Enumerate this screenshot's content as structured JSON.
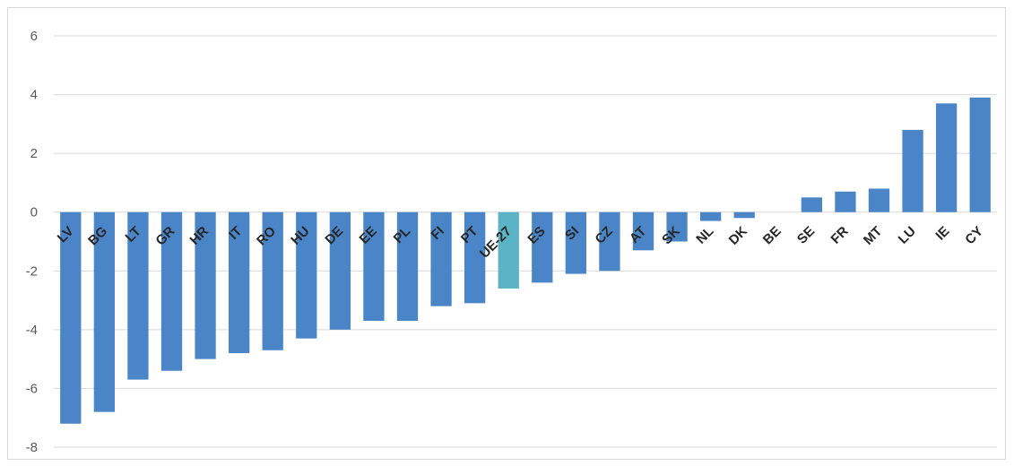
{
  "chart_data": {
    "type": "bar",
    "title": "",
    "xlabel": "",
    "ylabel": "",
    "ylim": [
      -8,
      6
    ],
    "yticks": [
      6,
      4,
      2,
      0,
      -2,
      -4,
      -6,
      -8
    ],
    "grid": true,
    "legend": "none",
    "colors": {
      "default": "#4a85c8",
      "highlight": "#5ab4c6",
      "grid": "#d9d9d9"
    },
    "highlight_category": "UE-27",
    "categories": [
      "LV",
      "BG",
      "LT",
      "GR",
      "HR",
      "IT",
      "RO",
      "HU",
      "DE",
      "EE",
      "PL",
      "FI",
      "PT",
      "UE-27",
      "ES",
      "SI",
      "CZ",
      "AT",
      "SK",
      "NL",
      "DK",
      "BE",
      "SE",
      "FR",
      "MT",
      "LU",
      "IE",
      "CY"
    ],
    "values": [
      -7.2,
      -6.8,
      -5.7,
      -5.4,
      -5.0,
      -4.8,
      -4.7,
      -4.3,
      -4.0,
      -3.7,
      -3.7,
      -3.2,
      -3.1,
      -2.6,
      -2.4,
      -2.1,
      -2.0,
      -1.3,
      -1.0,
      -0.3,
      -0.2,
      0.0,
      0.5,
      0.7,
      0.8,
      2.8,
      3.7,
      3.9
    ]
  }
}
